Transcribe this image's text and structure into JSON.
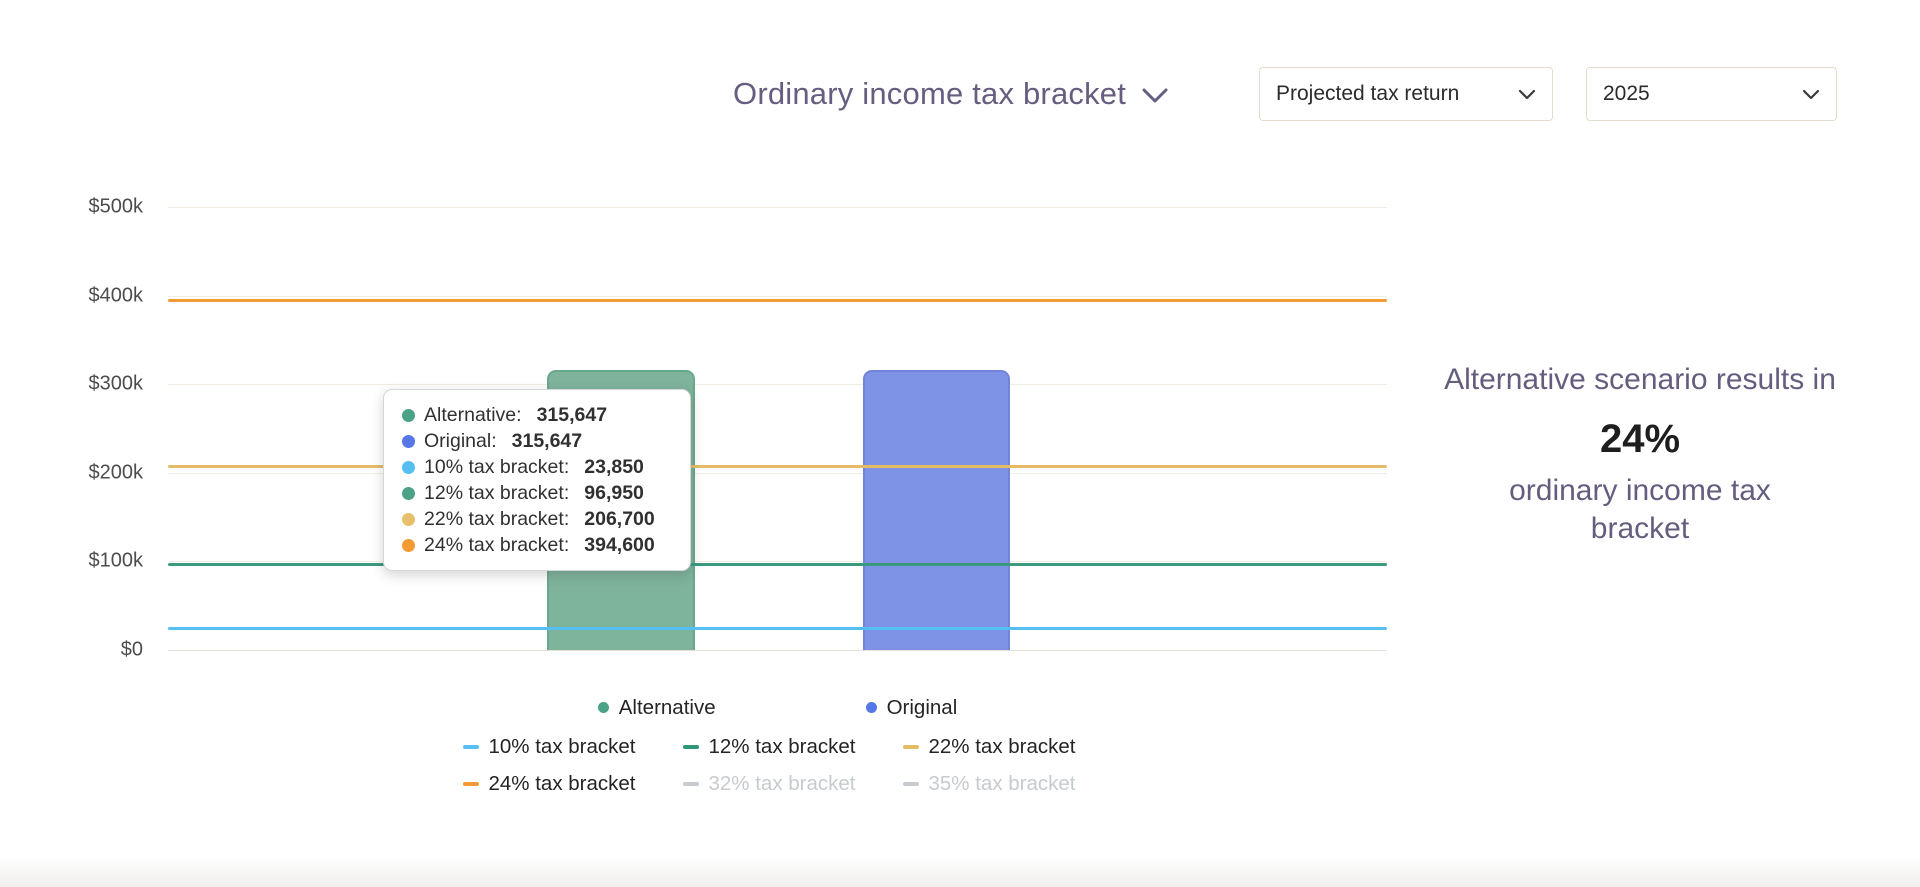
{
  "header": {
    "title": "Ordinary income tax bracket",
    "report_select": {
      "value": "Projected tax return"
    },
    "year_select": {
      "value": "2025"
    }
  },
  "chart_data": {
    "type": "bar",
    "title": "Ordinary income tax bracket",
    "xlabel": "",
    "ylabel": "",
    "ylim": [
      0,
      500000
    ],
    "grid": true,
    "legend_position": "bottom",
    "yticks": [
      {
        "label": "$0",
        "value": 0
      },
      {
        "label": "$100k",
        "value": 100000
      },
      {
        "label": "$200k",
        "value": 200000
      },
      {
        "label": "$300k",
        "value": 300000
      },
      {
        "label": "$400k",
        "value": 400000
      },
      {
        "label": "$500k",
        "value": 500000
      }
    ],
    "bars": [
      {
        "name": "Alternative",
        "value": 315647,
        "fill": "#7eb39c",
        "border": "#68a88c"
      },
      {
        "name": "Original",
        "value": 315647,
        "fill": "#7e92e6",
        "border": "#7184da"
      }
    ],
    "bracket_lines": [
      {
        "name": "10% tax bracket",
        "value": 23850,
        "color": "#55bff2"
      },
      {
        "name": "12% tax bracket",
        "value": 96950,
        "color": "#3a9a7c"
      },
      {
        "name": "22% tax bracket",
        "value": 206700,
        "color": "#e4bc66"
      },
      {
        "name": "24% tax bracket",
        "value": 394600,
        "color": "#f39b32"
      }
    ],
    "hidden_series": [
      "32% tax bracket",
      "35% tax bracket"
    ]
  },
  "tooltip": {
    "rows": [
      {
        "label": "Alternative",
        "value": "315,647",
        "color": "#4aa287"
      },
      {
        "label": "Original",
        "value": "315,647",
        "color": "#5577e8"
      },
      {
        "label": "10% tax bracket",
        "value": "23,850",
        "color": "#55bff2"
      },
      {
        "label": "12% tax bracket",
        "value": "96,950",
        "color": "#4aa287"
      },
      {
        "label": "22% tax bracket",
        "value": "206,700",
        "color": "#e8c06c"
      },
      {
        "label": "24% tax bracket",
        "value": "394,600",
        "color": "#f39b32"
      }
    ]
  },
  "legend": {
    "rows": [
      {
        "items": [
          {
            "label": "Alternative",
            "color": "#4aa287",
            "marker": "dot",
            "disabled": false
          },
          {
            "label": "Original",
            "color": "#5577e8",
            "marker": "dot",
            "disabled": false
          }
        ]
      },
      {
        "items": [
          {
            "label": "10% tax bracket",
            "color": "#55bff2",
            "marker": "dash",
            "disabled": false
          },
          {
            "label": "12% tax bracket",
            "color": "#2f9678",
            "marker": "dash",
            "disabled": false
          },
          {
            "label": "22% tax bracket",
            "color": "#e4bc66",
            "marker": "dash",
            "disabled": false
          }
        ]
      },
      {
        "items": [
          {
            "label": "24% tax bracket",
            "color": "#f39b32",
            "marker": "dash",
            "disabled": false
          },
          {
            "label": "32% tax bracket",
            "color": "#c7ccd0",
            "marker": "dash",
            "disabled": true
          },
          {
            "label": "35% tax bracket",
            "color": "#c7ccd0",
            "marker": "dash",
            "disabled": true
          }
        ]
      }
    ]
  },
  "summary": {
    "line1": "Alternative scenario results in",
    "highlight": "24%",
    "line2": "ordinary income tax bracket"
  },
  "colors": {
    "title_purple": "#675d80",
    "summary_purple": "#665c7e",
    "gridline": "#f1ece3",
    "axis_line": "#e6e1d7",
    "select_border": "#e4ddcc"
  }
}
